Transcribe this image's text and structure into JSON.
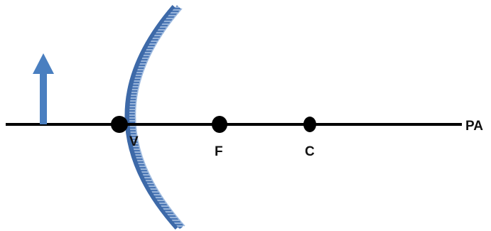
{
  "labels": {
    "vertex": "V",
    "focus": "F",
    "center": "C",
    "principal_axis": "PA"
  },
  "colors": {
    "axis": "#000000",
    "mirror": "#4a76b5",
    "mirror_dark": "#2f5a98",
    "mirror_hatch": "#b9cde8",
    "object_arrow": "#4a7fc0",
    "point": "#000000"
  },
  "icons": {
    "object": "up-arrow-icon",
    "mirror": "concave-mirror-icon"
  }
}
